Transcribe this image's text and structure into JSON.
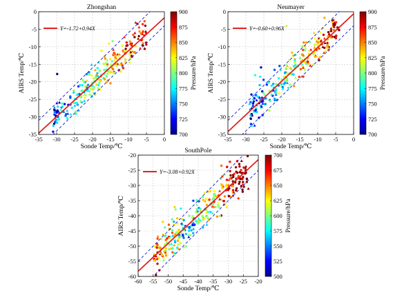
{
  "figure": {
    "pressure_unit_label": "Pressure/hPa",
    "xlabel": "Sonde Temp/℃",
    "ylabel": "AIRS Temp/℃"
  },
  "chart_data": [
    {
      "type": "scatter",
      "title": "Zhongshan",
      "xlabel": "Sonde Temp/℃",
      "ylabel": "AIRS Temp/℃",
      "xlim": [
        -35,
        0
      ],
      "ylim": [
        -35,
        0
      ],
      "xticks": [
        -35,
        -30,
        -25,
        -20,
        -15,
        -10,
        -5,
        0
      ],
      "yticks": [
        -35,
        -30,
        -25,
        -20,
        -15,
        -10,
        -5,
        0
      ],
      "grid": true,
      "legend": "top-left",
      "fit_label": "Y=-1.72+0.94X",
      "fit": {
        "intercept": -1.72,
        "slope": 0.94,
        "color": "#e02020"
      },
      "bounds_offset": 4,
      "bounds_color": "#2030d0",
      "colorbar": {
        "label": "Pressure/hPa",
        "min": 700,
        "max": 900,
        "ticks": [
          700,
          725,
          750,
          775,
          800,
          825,
          850,
          875,
          900
        ]
      },
      "cloud": {
        "x_range": [
          -31,
          -5
        ],
        "spread": 2.2,
        "n": 260,
        "p_low_at": "low-x",
        "seed": 11
      }
    },
    {
      "type": "scatter",
      "title": "Neumayer",
      "xlabel": "Sonde Temp/℃",
      "ylabel": "AIRS Temp/℃",
      "xlim": [
        -35,
        0
      ],
      "ylim": [
        -35,
        0
      ],
      "xticks": [
        -35,
        -30,
        -25,
        -20,
        -15,
        -10,
        -5,
        0
      ],
      "yticks": [
        -35,
        -30,
        -25,
        -20,
        -15,
        -10,
        -5,
        0
      ],
      "grid": true,
      "legend": "top-left",
      "fit_label": "Y=-0.60+0.96X",
      "fit": {
        "intercept": -0.6,
        "slope": 0.96,
        "color": "#e02020"
      },
      "bounds_offset": 4,
      "bounds_color": "#2030d0",
      "colorbar": {
        "label": "Pressure/hPa",
        "min": 700,
        "max": 900,
        "ticks": [
          700,
          725,
          750,
          775,
          800,
          825,
          850,
          875,
          900
        ]
      },
      "cloud": {
        "x_range": [
          -29,
          -4
        ],
        "spread": 2.3,
        "n": 260,
        "p_low_at": "low-x",
        "seed": 23
      }
    },
    {
      "type": "scatter",
      "title": "SouthPole",
      "xlabel": "Sonde Temp/℃",
      "ylabel": "AIRS Temp/℃",
      "xlim": [
        -60,
        -20
      ],
      "ylim": [
        -60,
        -20
      ],
      "xticks": [
        -60,
        -55,
        -50,
        -45,
        -40,
        -35,
        -30,
        -25,
        -20
      ],
      "yticks": [
        -60,
        -55,
        -50,
        -45,
        -40,
        -35,
        -30,
        -25,
        -20
      ],
      "grid": true,
      "legend": "top-left",
      "fit_label": "Y=-3.08+0.92X",
      "fit": {
        "intercept": -3.08,
        "slope": 0.92,
        "color": "#e02020"
      },
      "bounds_offset": 5,
      "bounds_color": "#2030d0",
      "colorbar": {
        "label": "Pressure/hPa",
        "min": 500,
        "max": 700,
        "ticks": [
          500,
          525,
          550,
          575,
          600,
          625,
          650,
          675,
          700
        ]
      },
      "cloud": {
        "x_range": [
          -55,
          -23
        ],
        "spread": 3.0,
        "n": 320,
        "p_low_at": "mid-x",
        "seed": 37
      }
    }
  ]
}
